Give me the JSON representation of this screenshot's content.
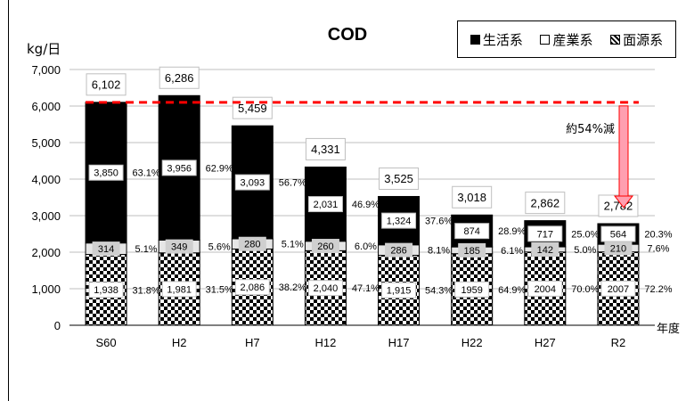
{
  "chart_data": {
    "type": "bar",
    "stacked": true,
    "title": "COD",
    "ylabel": "kg/日",
    "xlabel": "年度",
    "ylim": [
      0,
      7000
    ],
    "yticks": [
      "0",
      "1,000",
      "2,000",
      "3,000",
      "4,000",
      "5,000",
      "6,000",
      "7,000"
    ],
    "categories": [
      "S60",
      "H2",
      "H7",
      "H12",
      "H17",
      "H22",
      "H27",
      "R2"
    ],
    "series": [
      {
        "name": "面源系",
        "values": [
          1938,
          1981,
          2086,
          2040,
          1915,
          1959,
          2004,
          2007
        ],
        "labels": [
          "1,938",
          "1,981",
          "2,086",
          "2,040",
          "1,915",
          "1959",
          "2004",
          "2007"
        ],
        "percent": [
          "31.8%",
          "31.5%",
          "38.2%",
          "47.1%",
          "54.3%",
          "64.9%",
          "70.0%",
          "72.2%"
        ]
      },
      {
        "name": "産業系",
        "values": [
          314,
          349,
          280,
          260,
          286,
          185,
          142,
          210
        ],
        "labels": [
          "314",
          "349",
          "280",
          "260",
          "286",
          "185",
          "142",
          "210"
        ],
        "percent": [
          "5.1%",
          "5.6%",
          "5.1%",
          "6.0%",
          "8.1%",
          "6.1%",
          "5.0%",
          "7.6%"
        ]
      },
      {
        "name": "生活系",
        "values": [
          3850,
          3956,
          3093,
          2031,
          1324,
          874,
          717,
          564
        ],
        "labels": [
          "3,850",
          "3,956",
          "3,093",
          "2,031",
          "1,324",
          "874",
          "717",
          "564"
        ],
        "percent": [
          "63.1%",
          "62.9%",
          "56.7%",
          "46.9%",
          "37.6%",
          "28.9%",
          "25.0%",
          "20.3%"
        ]
      }
    ],
    "totals": [
      6102,
      6286,
      5459,
      4331,
      3525,
      3018,
      2862,
      2782
    ],
    "total_labels": [
      "6,102",
      "6,286",
      "5,459",
      "4,331",
      "3,525",
      "3,018",
      "2,862",
      "2,782"
    ],
    "reference_line": {
      "value": 6102,
      "color": "#ff0000",
      "style": "dashed"
    },
    "annotation": {
      "text": "約54%減",
      "arrow_color": "#ff9fb0"
    },
    "legend": [
      "■生活系",
      "□産業系",
      "⊠面源系"
    ],
    "legend_position": "top-right",
    "grid": true
  }
}
